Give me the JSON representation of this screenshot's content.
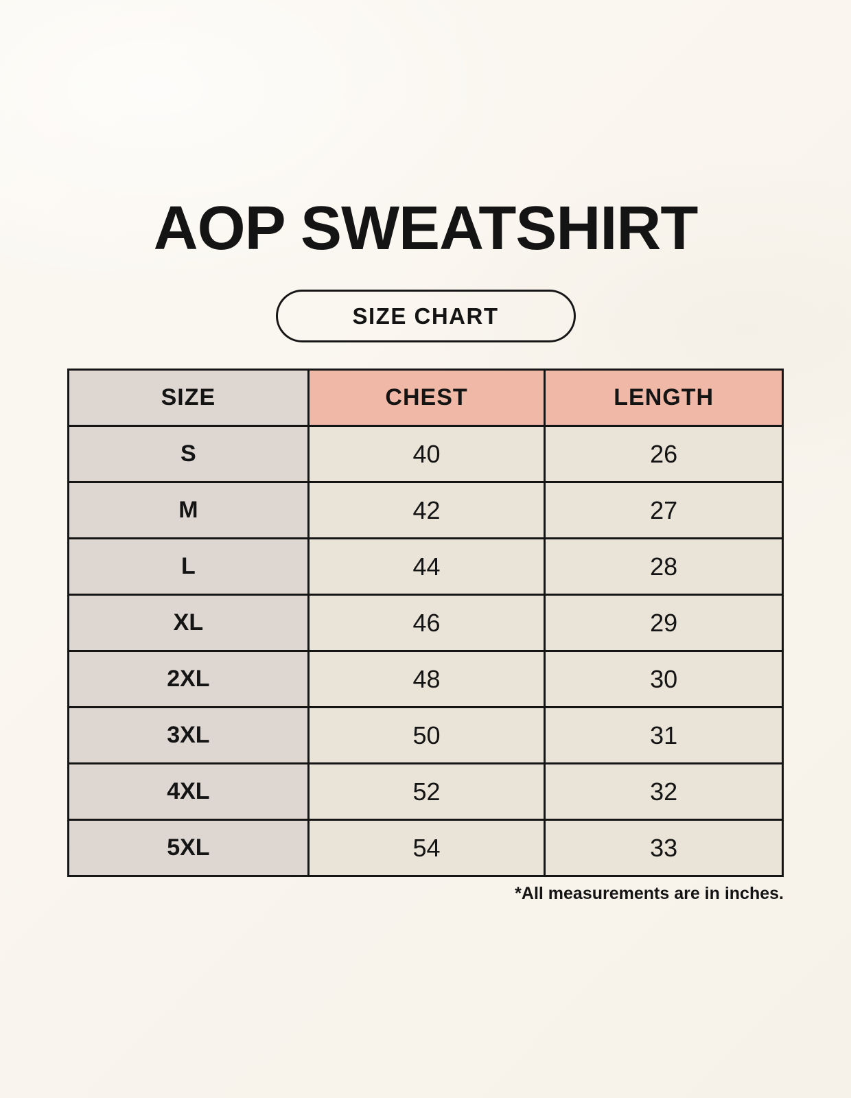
{
  "page": {
    "title": "AOP SWEATSHIRT",
    "badge_label": "SIZE CHART",
    "footnote": "*All measurements are in inches."
  },
  "colors": {
    "background": "#faf7f0",
    "header_accent": "#f0b8a6",
    "size_column_gray": "#ddd6d1",
    "cell_cream": "#eae3d7",
    "border": "#151515",
    "text": "#141414"
  },
  "chart_data": {
    "type": "table",
    "title": "AOP Sweatshirt Size Chart",
    "units": "inches",
    "columns": [
      "SIZE",
      "CHEST",
      "LENGTH"
    ],
    "rows": [
      {
        "size": "S",
        "chest": 40,
        "length": 26
      },
      {
        "size": "M",
        "chest": 42,
        "length": 27
      },
      {
        "size": "L",
        "chest": 44,
        "length": 28
      },
      {
        "size": "XL",
        "chest": 46,
        "length": 29
      },
      {
        "size": "2XL",
        "chest": 48,
        "length": 30
      },
      {
        "size": "3XL",
        "chest": 50,
        "length": 31
      },
      {
        "size": "4XL",
        "chest": 52,
        "length": 32
      },
      {
        "size": "5XL",
        "chest": 54,
        "length": 33
      }
    ]
  }
}
